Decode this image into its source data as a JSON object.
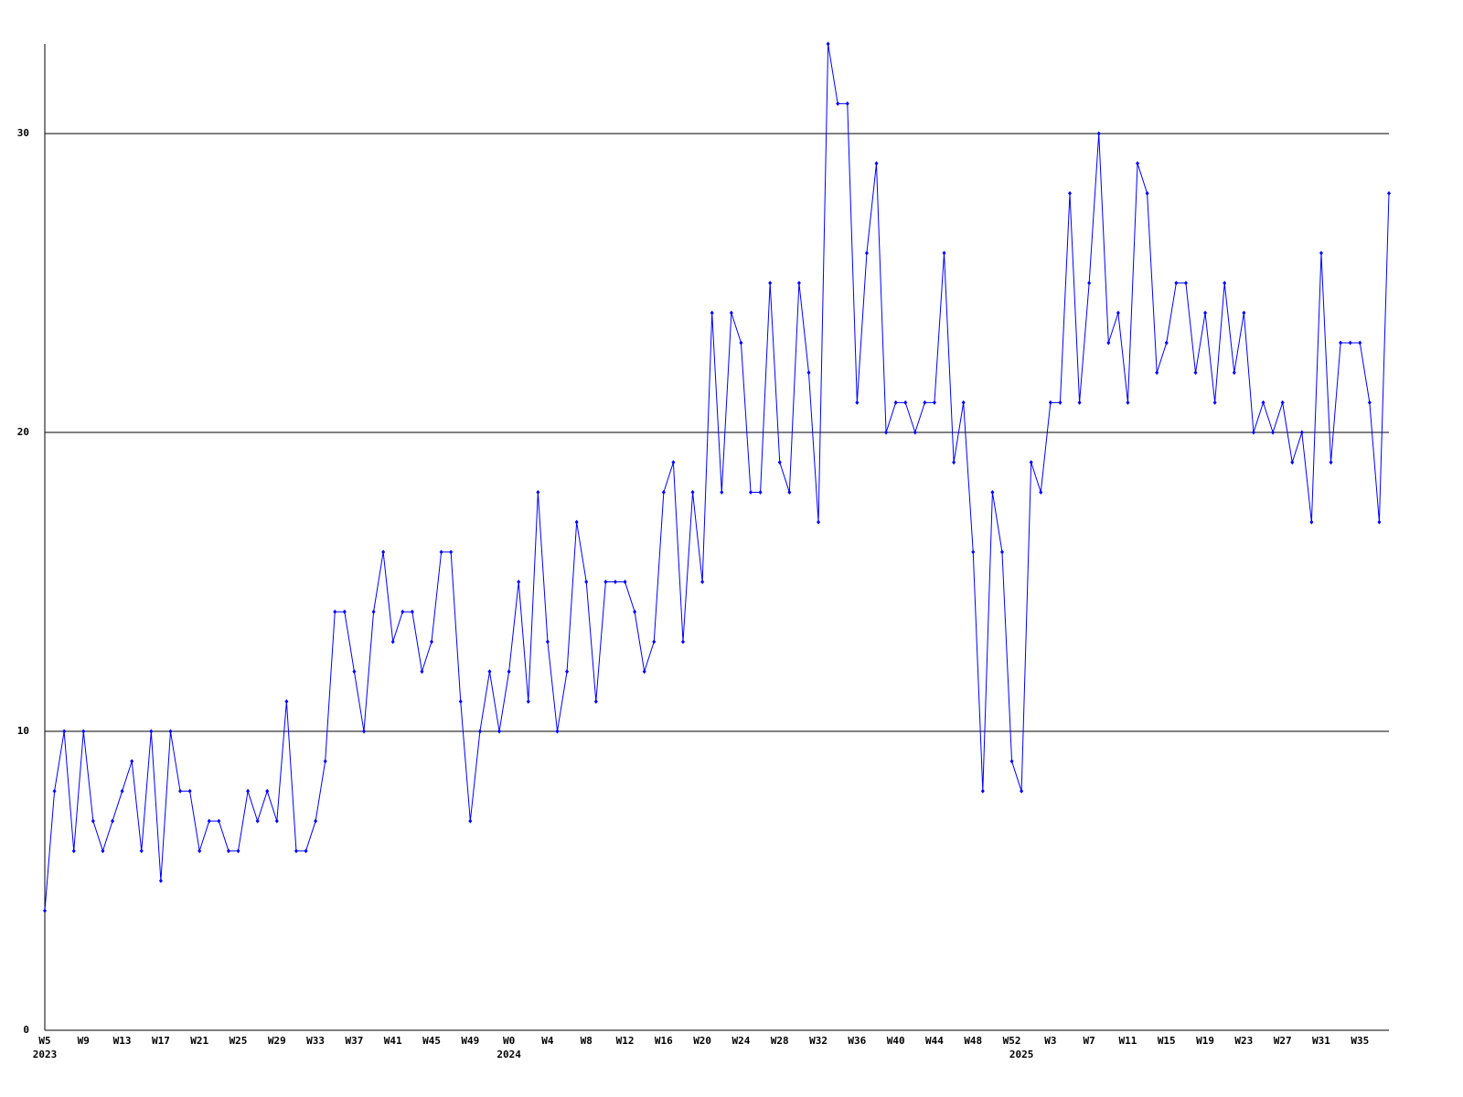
{
  "chart_data": {
    "type": "line",
    "categories": [
      "W5",
      null,
      null,
      null,
      "W9",
      null,
      null,
      null,
      "W13",
      null,
      null,
      null,
      "W17",
      null,
      null,
      null,
      "W21",
      null,
      null,
      null,
      "W25",
      null,
      null,
      null,
      "W29",
      null,
      null,
      null,
      "W33",
      null,
      null,
      null,
      "W37",
      null,
      null,
      null,
      "W41",
      null,
      null,
      null,
      "W45",
      null,
      null,
      null,
      "W49",
      null,
      null,
      null,
      "W0",
      null,
      null,
      null,
      "W4",
      null,
      null,
      null,
      "W8",
      null,
      null,
      null,
      "W12",
      null,
      null,
      null,
      "W16",
      null,
      null,
      null,
      "W20",
      null,
      null,
      null,
      "W24",
      null,
      null,
      null,
      "W28",
      null,
      null,
      null,
      "W32",
      null,
      null,
      null,
      "W36",
      null,
      null,
      null,
      "W40",
      null,
      null,
      null,
      "W44",
      null,
      null,
      null,
      "W48",
      null,
      null,
      null,
      "W52",
      null,
      null,
      null,
      "W3",
      null,
      null,
      null,
      "W7",
      null,
      null,
      null,
      "W11",
      null,
      null,
      null,
      "W15",
      null,
      null,
      null,
      "W19",
      null,
      null,
      null,
      "W23",
      null,
      null,
      null,
      "W27",
      null,
      null,
      null,
      "W31",
      null,
      null,
      null,
      "W35",
      null,
      null,
      null
    ],
    "year_labels": [
      {
        "index": 0,
        "label": "2023"
      },
      {
        "index": 48,
        "label": "2024"
      },
      {
        "index": 101,
        "label": "2025"
      }
    ],
    "values": [
      4,
      8,
      10,
      6,
      10,
      7,
      6,
      7,
      8,
      9,
      6,
      10,
      5,
      10,
      8,
      8,
      6,
      7,
      7,
      6,
      6,
      8,
      7,
      8,
      7,
      11,
      6,
      6,
      7,
      9,
      14,
      14,
      12,
      10,
      14,
      16,
      13,
      14,
      14,
      12,
      13,
      16,
      16,
      11,
      7,
      10,
      12,
      10,
      12,
      15,
      11,
      18,
      13,
      10,
      12,
      17,
      15,
      11,
      15,
      15,
      15,
      14,
      12,
      13,
      18,
      19,
      13,
      18,
      15,
      24,
      18,
      24,
      23,
      18,
      18,
      25,
      19,
      18,
      25,
      22,
      17,
      33,
      31,
      31,
      21,
      26,
      29,
      20,
      21,
      21,
      20,
      21,
      21,
      26,
      19,
      21,
      16,
      8,
      18,
      16,
      9,
      8,
      19,
      18,
      21,
      21,
      28,
      21,
      25,
      30,
      23,
      24,
      21,
      29,
      28,
      22,
      23,
      25,
      25,
      22,
      24,
      21,
      25,
      22,
      24,
      20,
      21,
      20,
      21,
      19,
      20,
      17,
      26,
      19,
      23,
      23,
      23,
      21,
      17,
      28
    ],
    "color": "#0000ff",
    "ylim": [
      0,
      33
    ],
    "yticks": [
      0,
      10,
      20,
      30
    ],
    "grid": true
  }
}
